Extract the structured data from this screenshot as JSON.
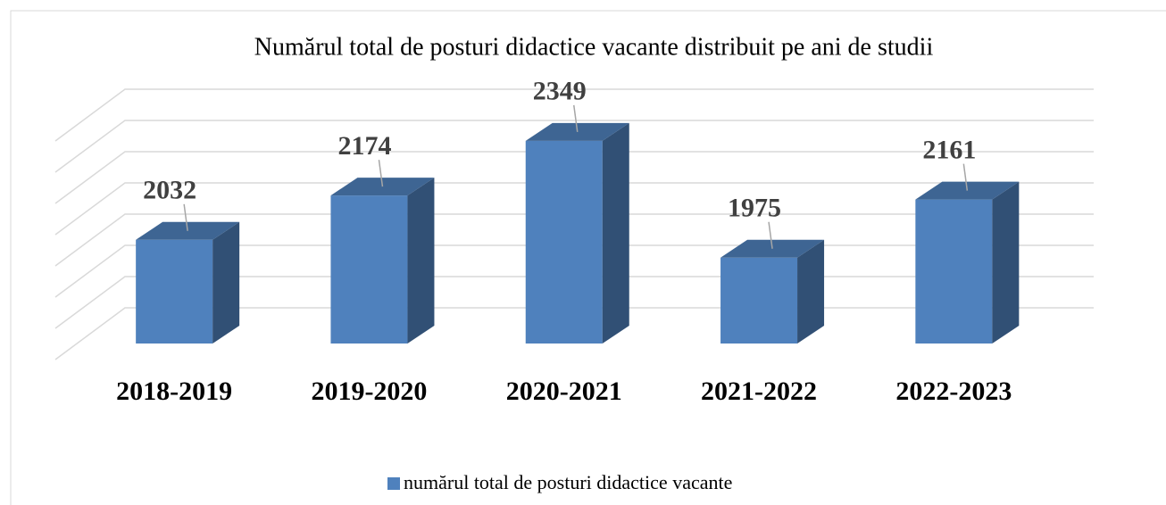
{
  "chart_data": {
    "type": "bar3d",
    "title": "Numărul total de posturi didactice vacante distribuit pe ani de studii",
    "categories": [
      "2018-2019",
      "2019-2020",
      "2020-2021",
      "2021-2022",
      "2022-2023"
    ],
    "series": [
      {
        "name": "numărul total de posturi didactice vacante",
        "color": "#4f81bd",
        "values": [
          2032,
          2174,
          2349,
          1975,
          2161
        ]
      }
    ],
    "ylim": [
      1700,
      2400
    ],
    "yticks": [
      1700,
      1800,
      1900,
      2000,
      2100,
      2200,
      2300,
      2400
    ],
    "grid": true,
    "legend": "bottom"
  }
}
